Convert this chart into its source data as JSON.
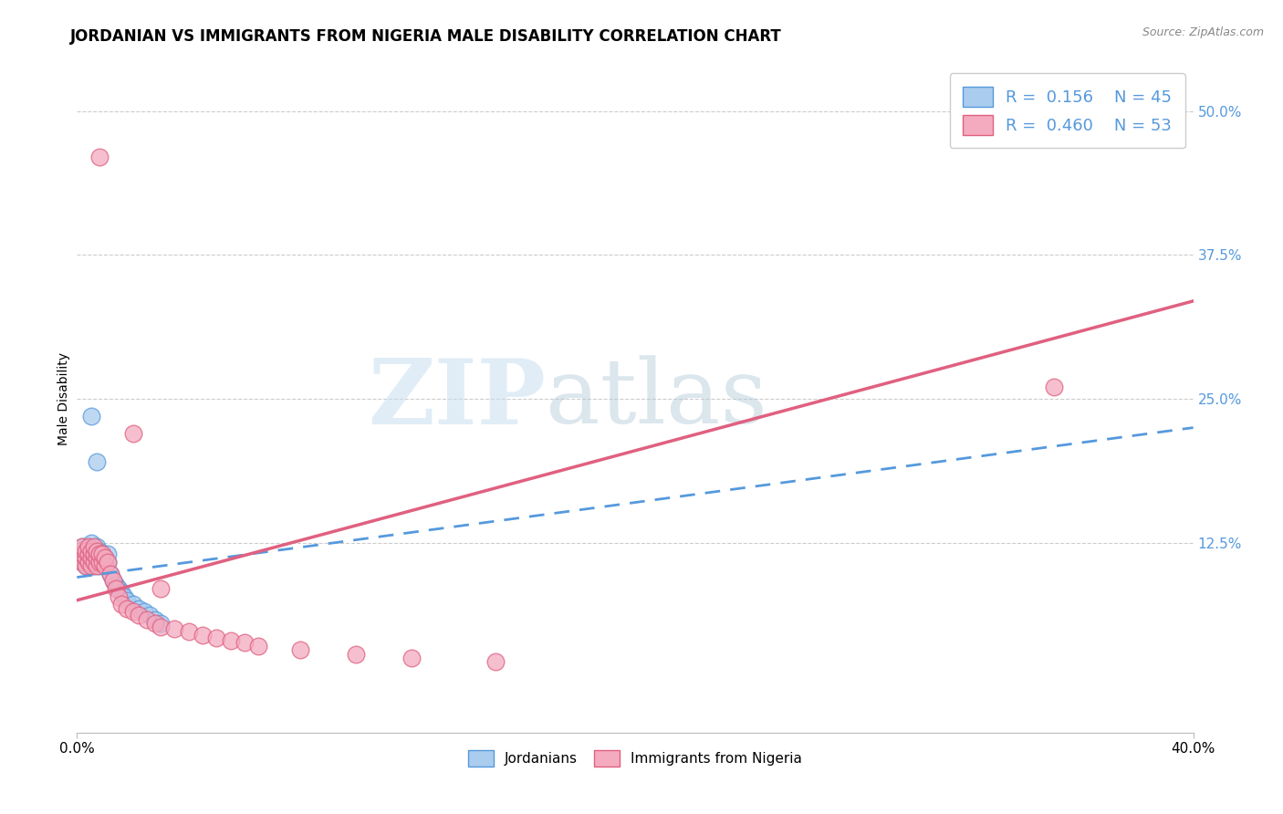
{
  "title": "JORDANIAN VS IMMIGRANTS FROM NIGERIA MALE DISABILITY CORRELATION CHART",
  "source": "Source: ZipAtlas.com",
  "ylabel": "Male Disability",
  "yticks": [
    0.125,
    0.25,
    0.375,
    0.5
  ],
  "ytick_labels": [
    "12.5%",
    "25.0%",
    "37.5%",
    "50.0%"
  ],
  "xmin": 0.0,
  "xmax": 0.4,
  "ymin": -0.04,
  "ymax": 0.54,
  "blue_R": 0.156,
  "blue_N": 45,
  "pink_R": 0.46,
  "pink_N": 53,
  "blue_color": "#aaccee",
  "pink_color": "#f4aabf",
  "blue_line_color": "#5599dd",
  "pink_line_color": "#e06080",
  "blue_edge_color": "#5599dd",
  "pink_edge_color": "#e06080",
  "grid_color": "#cccccc",
  "background_color": "#ffffff",
  "title_fontsize": 12,
  "axis_label_fontsize": 10,
  "tick_fontsize": 11,
  "legend_fontsize": 13,
  "blue_trend_x0": 0.0,
  "blue_trend_y0": 0.095,
  "blue_trend_x1": 0.4,
  "blue_trend_y1": 0.225,
  "pink_trend_x0": 0.0,
  "pink_trend_y0": 0.075,
  "pink_trend_x1": 0.4,
  "pink_trend_y1": 0.335,
  "jordanians_x": [
    0.001,
    0.001,
    0.002,
    0.002,
    0.002,
    0.003,
    0.003,
    0.003,
    0.004,
    0.004,
    0.004,
    0.005,
    0.005,
    0.005,
    0.005,
    0.006,
    0.006,
    0.006,
    0.007,
    0.007,
    0.007,
    0.008,
    0.008,
    0.008,
    0.009,
    0.009,
    0.01,
    0.01,
    0.011,
    0.011,
    0.012,
    0.013,
    0.014,
    0.015,
    0.016,
    0.017,
    0.018,
    0.02,
    0.022,
    0.024,
    0.026,
    0.028,
    0.03,
    0.005,
    0.007
  ],
  "jordanians_y": [
    0.112,
    0.118,
    0.108,
    0.115,
    0.122,
    0.105,
    0.112,
    0.118,
    0.108,
    0.115,
    0.122,
    0.105,
    0.112,
    0.118,
    0.125,
    0.105,
    0.112,
    0.118,
    0.108,
    0.115,
    0.122,
    0.105,
    0.112,
    0.118,
    0.108,
    0.115,
    0.105,
    0.112,
    0.108,
    0.115,
    0.098,
    0.092,
    0.088,
    0.085,
    0.082,
    0.078,
    0.075,
    0.072,
    0.068,
    0.065,
    0.062,
    0.058,
    0.055,
    0.235,
    0.195
  ],
  "nigeria_x": [
    0.001,
    0.001,
    0.002,
    0.002,
    0.002,
    0.003,
    0.003,
    0.003,
    0.004,
    0.004,
    0.004,
    0.005,
    0.005,
    0.005,
    0.006,
    0.006,
    0.006,
    0.007,
    0.007,
    0.007,
    0.008,
    0.008,
    0.009,
    0.009,
    0.01,
    0.01,
    0.011,
    0.012,
    0.013,
    0.014,
    0.015,
    0.016,
    0.018,
    0.02,
    0.022,
    0.025,
    0.028,
    0.03,
    0.035,
    0.04,
    0.045,
    0.05,
    0.055,
    0.06,
    0.065,
    0.08,
    0.1,
    0.12,
    0.15,
    0.35,
    0.008,
    0.02,
    0.03
  ],
  "nigeria_y": [
    0.112,
    0.118,
    0.108,
    0.115,
    0.122,
    0.105,
    0.112,
    0.118,
    0.108,
    0.115,
    0.122,
    0.105,
    0.112,
    0.118,
    0.108,
    0.115,
    0.122,
    0.105,
    0.112,
    0.118,
    0.108,
    0.115,
    0.108,
    0.115,
    0.105,
    0.112,
    0.108,
    0.098,
    0.092,
    0.085,
    0.078,
    0.072,
    0.068,
    0.065,
    0.062,
    0.058,
    0.055,
    0.052,
    0.05,
    0.048,
    0.045,
    0.042,
    0.04,
    0.038,
    0.035,
    0.032,
    0.028,
    0.025,
    0.022,
    0.26,
    0.46,
    0.22,
    0.085
  ]
}
